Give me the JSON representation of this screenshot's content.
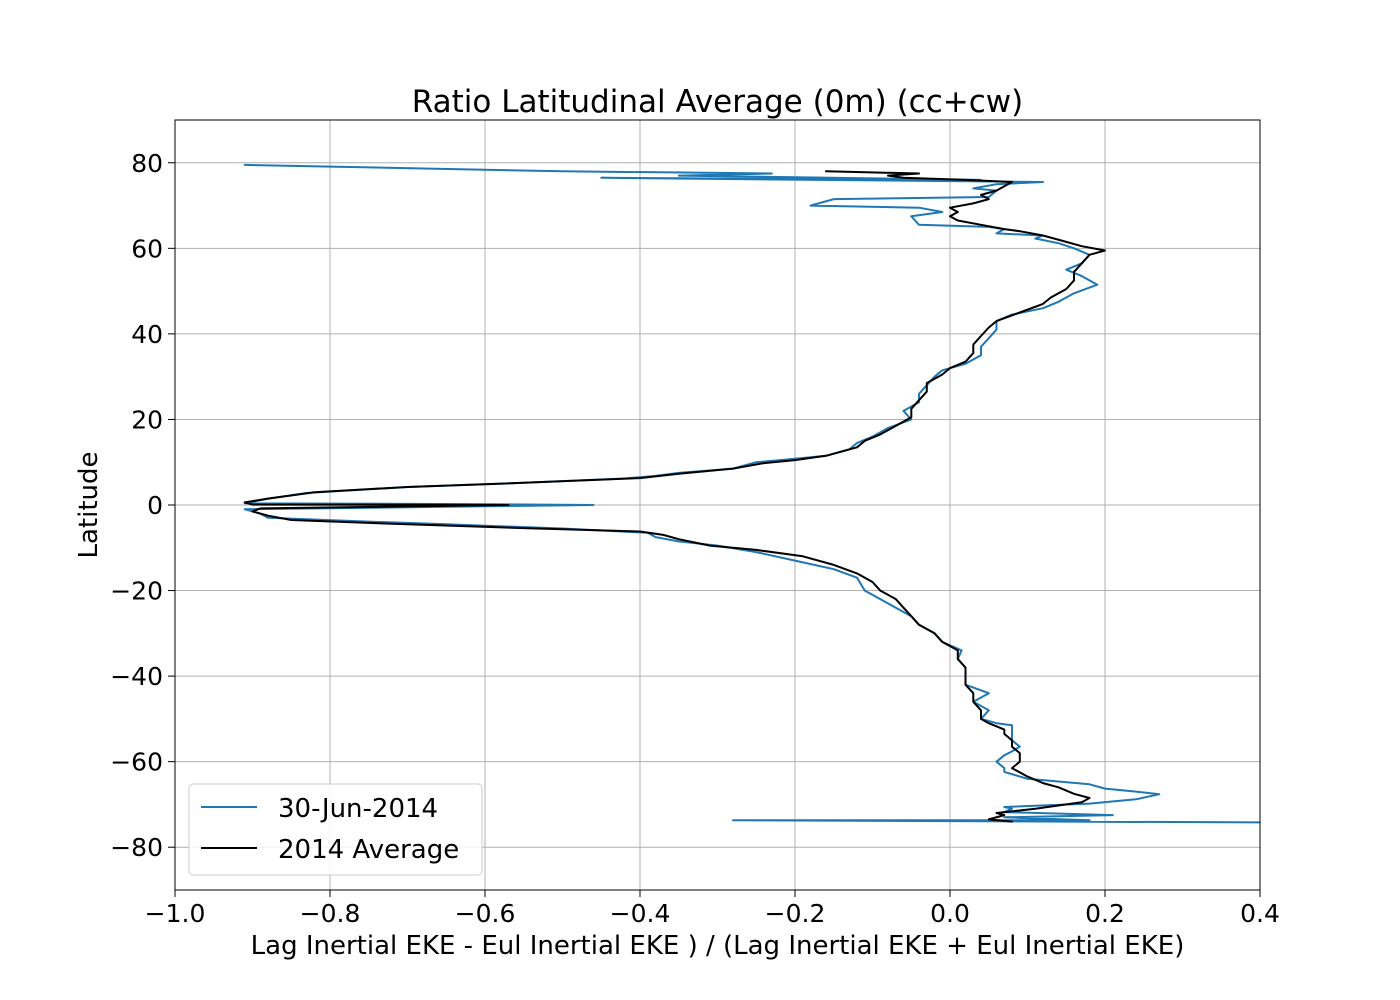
{
  "chart_data": {
    "type": "line",
    "title": "Ratio Latitudinal Average (0m) (cc+cw)",
    "xlabel": "Lag Inertial EKE - Eul Inertial EKE ) / (Lag Inertial EKE + Eul Inertial EKE)",
    "ylabel": "Latitude",
    "xlim": [
      -1.0,
      0.4
    ],
    "ylim": [
      -90,
      90
    ],
    "x_ticks": [
      -1.0,
      -0.8,
      -0.6,
      -0.4,
      -0.2,
      0.0,
      0.2,
      0.4
    ],
    "x_tick_labels": [
      "−1.0",
      "−0.8",
      "−0.6",
      "−0.4",
      "−0.2",
      "0.0",
      "0.2",
      "0.4"
    ],
    "y_ticks": [
      -80,
      -60,
      -40,
      -20,
      0,
      20,
      40,
      60,
      80
    ],
    "y_tick_labels": [
      "−80",
      "−60",
      "−40",
      "−20",
      "0",
      "20",
      "40",
      "60",
      "80"
    ],
    "grid": true,
    "legend_position": "lower-left",
    "series": [
      {
        "name": "30-Jun-2014",
        "color": "#1f77b4",
        "points": [
          [
            0.4,
            -74.2
          ],
          [
            -0.28,
            -73.7
          ],
          [
            0.18,
            -73.7
          ],
          [
            0.07,
            -73.0
          ],
          [
            0.21,
            -72.5
          ],
          [
            0.07,
            -71.8
          ],
          [
            0.08,
            -71.0
          ],
          [
            0.07,
            -70.6
          ],
          [
            0.18,
            -69.8
          ],
          [
            0.24,
            -68.8
          ],
          [
            0.27,
            -67.6
          ],
          [
            0.24,
            -67.0
          ],
          [
            0.2,
            -66.3
          ],
          [
            0.18,
            -65.3
          ],
          [
            0.1,
            -64.0
          ],
          [
            0.07,
            -62.4
          ],
          [
            0.07,
            -61.5
          ],
          [
            0.06,
            -60.0
          ],
          [
            0.07,
            -58.5
          ],
          [
            0.08,
            -57.6
          ],
          [
            0.09,
            -56.5
          ],
          [
            0.08,
            -55.0
          ],
          [
            0.08,
            -53.0
          ],
          [
            0.08,
            -51.5
          ],
          [
            0.06,
            -51.0
          ],
          [
            0.04,
            -50.0
          ],
          [
            0.05,
            -48.0
          ],
          [
            0.03,
            -46.0
          ],
          [
            0.05,
            -44.0
          ],
          [
            0.02,
            -42.0
          ],
          [
            0.02,
            -40.0
          ],
          [
            0.02,
            -38.0
          ],
          [
            0.01,
            -36.0
          ],
          [
            0.015,
            -34.0
          ],
          [
            -0.01,
            -32.0
          ],
          [
            -0.02,
            -30.0
          ],
          [
            -0.04,
            -28.0
          ],
          [
            -0.05,
            -26.0
          ],
          [
            -0.07,
            -24.0
          ],
          [
            -0.09,
            -22.0
          ],
          [
            -0.11,
            -20.0
          ],
          [
            -0.12,
            -17.0
          ],
          [
            -0.15,
            -15.0
          ],
          [
            -0.2,
            -13.0
          ],
          [
            -0.25,
            -11.0
          ],
          [
            -0.3,
            -9.5
          ],
          [
            -0.35,
            -8.5
          ],
          [
            -0.38,
            -7.5
          ],
          [
            -0.39,
            -6.5
          ],
          [
            -0.5,
            -5.5
          ],
          [
            -0.65,
            -4.5
          ],
          [
            -0.78,
            -3.7
          ],
          [
            -0.88,
            -3.0
          ],
          [
            -0.89,
            -2.0
          ],
          [
            -0.91,
            -1.0
          ],
          [
            -0.6,
            -0.3
          ],
          [
            -0.46,
            0.0
          ],
          [
            -0.62,
            0.2
          ],
          [
            -0.91,
            0.4
          ],
          [
            -0.88,
            1.5
          ],
          [
            -0.83,
            2.8
          ],
          [
            -0.7,
            4.2
          ],
          [
            -0.55,
            5.2
          ],
          [
            -0.42,
            6.2
          ],
          [
            -0.38,
            6.8
          ],
          [
            -0.35,
            7.5
          ],
          [
            -0.28,
            8.5
          ],
          [
            -0.25,
            10.0
          ],
          [
            -0.2,
            10.8
          ],
          [
            -0.16,
            11.5
          ],
          [
            -0.13,
            13.0
          ],
          [
            -0.12,
            14.5
          ],
          [
            -0.1,
            16.0
          ],
          [
            -0.08,
            18.0
          ],
          [
            -0.05,
            20.0
          ],
          [
            -0.06,
            22.0
          ],
          [
            -0.04,
            24.0
          ],
          [
            -0.04,
            26.0
          ],
          [
            -0.03,
            28.0
          ],
          [
            -0.02,
            30.0
          ],
          [
            -0.01,
            31.5
          ],
          [
            0.02,
            33.0
          ],
          [
            0.04,
            35.0
          ],
          [
            0.04,
            37.0
          ],
          [
            0.05,
            39.0
          ],
          [
            0.06,
            41.0
          ],
          [
            0.06,
            43.0
          ],
          [
            0.08,
            44.5
          ],
          [
            0.12,
            46.0
          ],
          [
            0.14,
            47.5
          ],
          [
            0.16,
            49.5
          ],
          [
            0.19,
            51.5
          ],
          [
            0.17,
            53.5
          ],
          [
            0.15,
            55.0
          ],
          [
            0.17,
            56.5
          ],
          [
            0.18,
            58.5
          ],
          [
            0.16,
            60.0
          ],
          [
            0.14,
            61.2
          ],
          [
            0.11,
            62.3
          ],
          [
            0.12,
            63.0
          ],
          [
            0.06,
            63.5
          ],
          [
            0.07,
            64.5
          ],
          [
            0.05,
            65.0
          ],
          [
            -0.04,
            65.5
          ],
          [
            -0.05,
            67.5
          ],
          [
            -0.01,
            68.5
          ],
          [
            -0.04,
            69.5
          ],
          [
            -0.18,
            70.0
          ],
          [
            -0.15,
            71.5
          ],
          [
            0.05,
            72.0
          ],
          [
            0.06,
            73.5
          ],
          [
            0.03,
            74.0
          ],
          [
            0.06,
            75.0
          ],
          [
            0.12,
            75.5
          ],
          [
            -0.45,
            76.5
          ],
          [
            0.04,
            76.0
          ],
          [
            -0.35,
            77.0
          ],
          [
            -0.23,
            77.5
          ],
          [
            -0.5,
            78.0
          ],
          [
            -0.91,
            79.5
          ]
        ]
      },
      {
        "name": "2014 Average",
        "color": "#000000",
        "points": [
          [
            0.08,
            -74.0
          ],
          [
            0.05,
            -73.5
          ],
          [
            0.07,
            -72.5
          ],
          [
            0.06,
            -72.0
          ],
          [
            0.11,
            -71.0
          ],
          [
            0.15,
            -70.0
          ],
          [
            0.17,
            -69.5
          ],
          [
            0.18,
            -68.5
          ],
          [
            0.16,
            -67.5
          ],
          [
            0.14,
            -66.0
          ],
          [
            0.12,
            -65.0
          ],
          [
            0.1,
            -63.5
          ],
          [
            0.09,
            -62.5
          ],
          [
            0.08,
            -61.5
          ],
          [
            0.09,
            -60.0
          ],
          [
            0.09,
            -58.0
          ],
          [
            0.08,
            -56.5
          ],
          [
            0.08,
            -55.0
          ],
          [
            0.07,
            -53.5
          ],
          [
            0.07,
            -52.5
          ],
          [
            0.05,
            -51.0
          ],
          [
            0.04,
            -50.0
          ],
          [
            0.04,
            -48.0
          ],
          [
            0.03,
            -46.0
          ],
          [
            0.03,
            -44.0
          ],
          [
            0.02,
            -42.0
          ],
          [
            0.02,
            -40.0
          ],
          [
            0.02,
            -38.0
          ],
          [
            0.01,
            -36.0
          ],
          [
            0.01,
            -34.0
          ],
          [
            -0.01,
            -32.0
          ],
          [
            -0.02,
            -30.0
          ],
          [
            -0.04,
            -28.0
          ],
          [
            -0.05,
            -26.0
          ],
          [
            -0.06,
            -24.0
          ],
          [
            -0.07,
            -22.0
          ],
          [
            -0.09,
            -20.0
          ],
          [
            -0.1,
            -18.0
          ],
          [
            -0.12,
            -16.0
          ],
          [
            -0.15,
            -14.0
          ],
          [
            -0.19,
            -12.0
          ],
          [
            -0.25,
            -10.5
          ],
          [
            -0.31,
            -9.5
          ],
          [
            -0.35,
            -8.0
          ],
          [
            -0.37,
            -7.0
          ],
          [
            -0.4,
            -6.2
          ],
          [
            -0.55,
            -5.4
          ],
          [
            -0.7,
            -4.5
          ],
          [
            -0.85,
            -3.5
          ],
          [
            -0.88,
            -2.5
          ],
          [
            -0.9,
            -1.5
          ],
          [
            -0.89,
            -0.8
          ],
          [
            -0.57,
            0.0
          ],
          [
            -0.9,
            0.1
          ],
          [
            -0.91,
            0.6
          ],
          [
            -0.88,
            1.5
          ],
          [
            -0.82,
            3.0
          ],
          [
            -0.7,
            4.2
          ],
          [
            -0.55,
            5.2
          ],
          [
            -0.4,
            6.3
          ],
          [
            -0.35,
            7.3
          ],
          [
            -0.28,
            8.5
          ],
          [
            -0.24,
            9.8
          ],
          [
            -0.2,
            10.5
          ],
          [
            -0.16,
            11.5
          ],
          [
            -0.12,
            13.5
          ],
          [
            -0.11,
            15.0
          ],
          [
            -0.09,
            16.5
          ],
          [
            -0.07,
            18.5
          ],
          [
            -0.05,
            20.5
          ],
          [
            -0.05,
            22.5
          ],
          [
            -0.04,
            24.5
          ],
          [
            -0.03,
            26.5
          ],
          [
            -0.03,
            28.5
          ],
          [
            -0.01,
            30.5
          ],
          [
            0.0,
            32.0
          ],
          [
            0.02,
            33.5
          ],
          [
            0.03,
            35.5
          ],
          [
            0.03,
            37.5
          ],
          [
            0.04,
            39.5
          ],
          [
            0.05,
            41.5
          ],
          [
            0.06,
            43.0
          ],
          [
            0.09,
            45.0
          ],
          [
            0.12,
            47.0
          ],
          [
            0.13,
            48.5
          ],
          [
            0.15,
            50.5
          ],
          [
            0.16,
            52.5
          ],
          [
            0.16,
            54.5
          ],
          [
            0.17,
            56.5
          ],
          [
            0.18,
            58.5
          ],
          [
            0.2,
            59.5
          ],
          [
            0.17,
            60.5
          ],
          [
            0.15,
            61.5
          ],
          [
            0.12,
            63.0
          ],
          [
            0.09,
            64.0
          ],
          [
            0.07,
            64.5
          ],
          [
            0.04,
            65.5
          ],
          [
            0.01,
            66.5
          ],
          [
            0.0,
            67.5
          ],
          [
            0.01,
            68.5
          ],
          [
            0.0,
            69.5
          ],
          [
            0.03,
            70.5
          ],
          [
            0.05,
            71.5
          ],
          [
            0.04,
            72.5
          ],
          [
            0.06,
            73.5
          ],
          [
            0.07,
            74.5
          ],
          [
            0.08,
            75.5
          ],
          [
            0.02,
            76.0
          ],
          [
            -0.06,
            76.5
          ],
          [
            -0.08,
            77.0
          ],
          [
            -0.04,
            77.5
          ],
          [
            -0.16,
            78.0
          ]
        ]
      }
    ]
  }
}
